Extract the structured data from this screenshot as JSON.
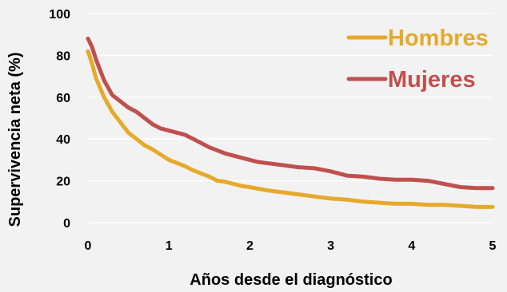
{
  "chart_data": {
    "type": "line",
    "title": "",
    "xlabel": "Años desde el diagnóstico",
    "ylabel": "Supervivencia neta (%)",
    "xlim": [
      0,
      5
    ],
    "ylim": [
      0,
      100
    ],
    "x_ticks": [
      "0",
      "1",
      "2",
      "3",
      "4",
      "5"
    ],
    "y_ticks": [
      "0",
      "20",
      "40",
      "60",
      "80",
      "100"
    ],
    "grid": true,
    "legend_position": "top-right",
    "series": [
      {
        "name": "Hombres",
        "color": "#e6a92b",
        "x": [
          0,
          0.05,
          0.1,
          0.2,
          0.3,
          0.4,
          0.5,
          0.6,
          0.7,
          0.8,
          0.9,
          1.0,
          1.1,
          1.2,
          1.3,
          1.4,
          1.5,
          1.6,
          1.7,
          1.8,
          1.9,
          2.0,
          2.2,
          2.4,
          2.6,
          2.8,
          3.0,
          3.2,
          3.4,
          3.6,
          3.8,
          4.0,
          4.2,
          4.4,
          4.6,
          4.8,
          5.0
        ],
        "y": [
          82,
          76,
          69,
          60,
          53,
          48,
          43,
          40,
          37,
          35,
          32.5,
          30,
          28.5,
          27,
          25,
          23.5,
          22,
          20,
          19.5,
          18.5,
          17.5,
          17,
          15.5,
          14.5,
          13.5,
          12.5,
          11.5,
          11,
          10,
          9.5,
          9,
          9,
          8.5,
          8.5,
          8,
          7.5,
          7.5
        ]
      },
      {
        "name": "Mujeres",
        "color": "#c0504d",
        "x": [
          0,
          0.05,
          0.1,
          0.2,
          0.3,
          0.4,
          0.5,
          0.6,
          0.7,
          0.8,
          0.9,
          1.0,
          1.1,
          1.2,
          1.3,
          1.4,
          1.5,
          1.6,
          1.7,
          1.8,
          1.9,
          2.0,
          2.1,
          2.2,
          2.4,
          2.6,
          2.8,
          3.0,
          3.2,
          3.4,
          3.6,
          3.8,
          4.0,
          4.2,
          4.4,
          4.6,
          4.8,
          5.0
        ],
        "y": [
          88,
          84,
          78,
          68,
          61,
          58,
          55,
          53,
          50,
          47,
          45,
          44,
          43,
          42,
          40,
          38,
          36,
          34.5,
          33,
          32,
          31,
          30,
          29,
          28.5,
          27.5,
          26.5,
          26,
          24.5,
          22.5,
          22,
          21,
          20.5,
          20.5,
          20,
          18.5,
          17,
          16.5,
          16.5
        ]
      }
    ]
  }
}
